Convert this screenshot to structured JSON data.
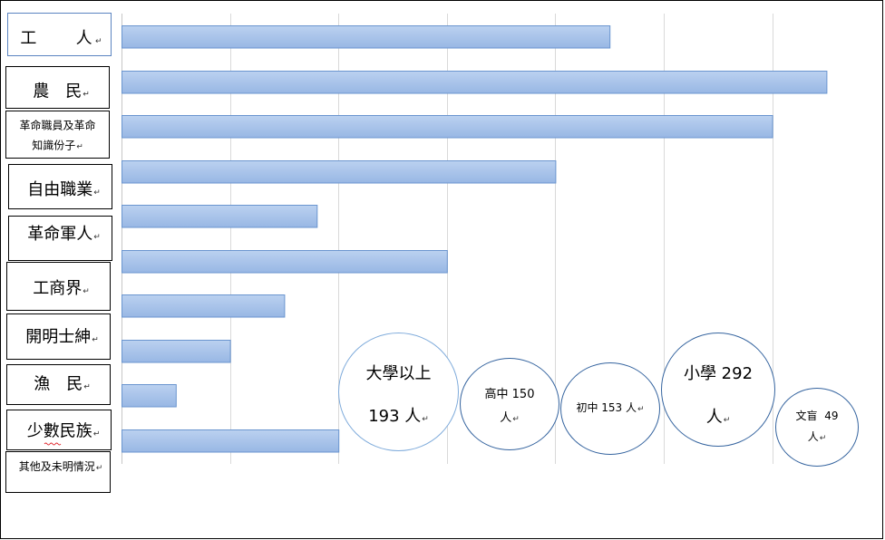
{
  "paragraph_mark": "↵",
  "chart_data": {
    "type": "bar",
    "categories": [
      "工　　人",
      "農　民",
      "革命職員及革命\n知識份子",
      "自由職業",
      "革命軍人",
      "工商界",
      "開明士紳",
      "漁　民",
      "少數民族",
      "其他及未明情況"
    ],
    "values": [
      4.5,
      6.5,
      6.0,
      4.0,
      1.8,
      3.0,
      1.5,
      1.0,
      0.5,
      2.0
    ],
    "xlim": [
      0,
      7
    ],
    "grid": true,
    "annotations": [
      {
        "lines": [
          "大學以上",
          "193 人"
        ]
      },
      {
        "lines": [
          "高中 150",
          "人"
        ]
      },
      {
        "lines": [
          "初中 153 人"
        ]
      },
      {
        "lines": [
          "小學 292",
          "人"
        ]
      },
      {
        "lines": [
          "文盲 49",
          "人"
        ]
      }
    ]
  },
  "colors": {
    "bar_fill_top": "#bbd1f0",
    "bar_fill_bottom": "#98b7e4",
    "bar_stroke": "#6a95cf",
    "gridline": "#d9d9d9",
    "axis_line": "#c6c6c6",
    "circle_light": "#7fabdb",
    "circle_dark": "#35649f",
    "label_border": "#000000",
    "selected_border": "#5b84c1",
    "spellcheck": "#e0242a"
  }
}
